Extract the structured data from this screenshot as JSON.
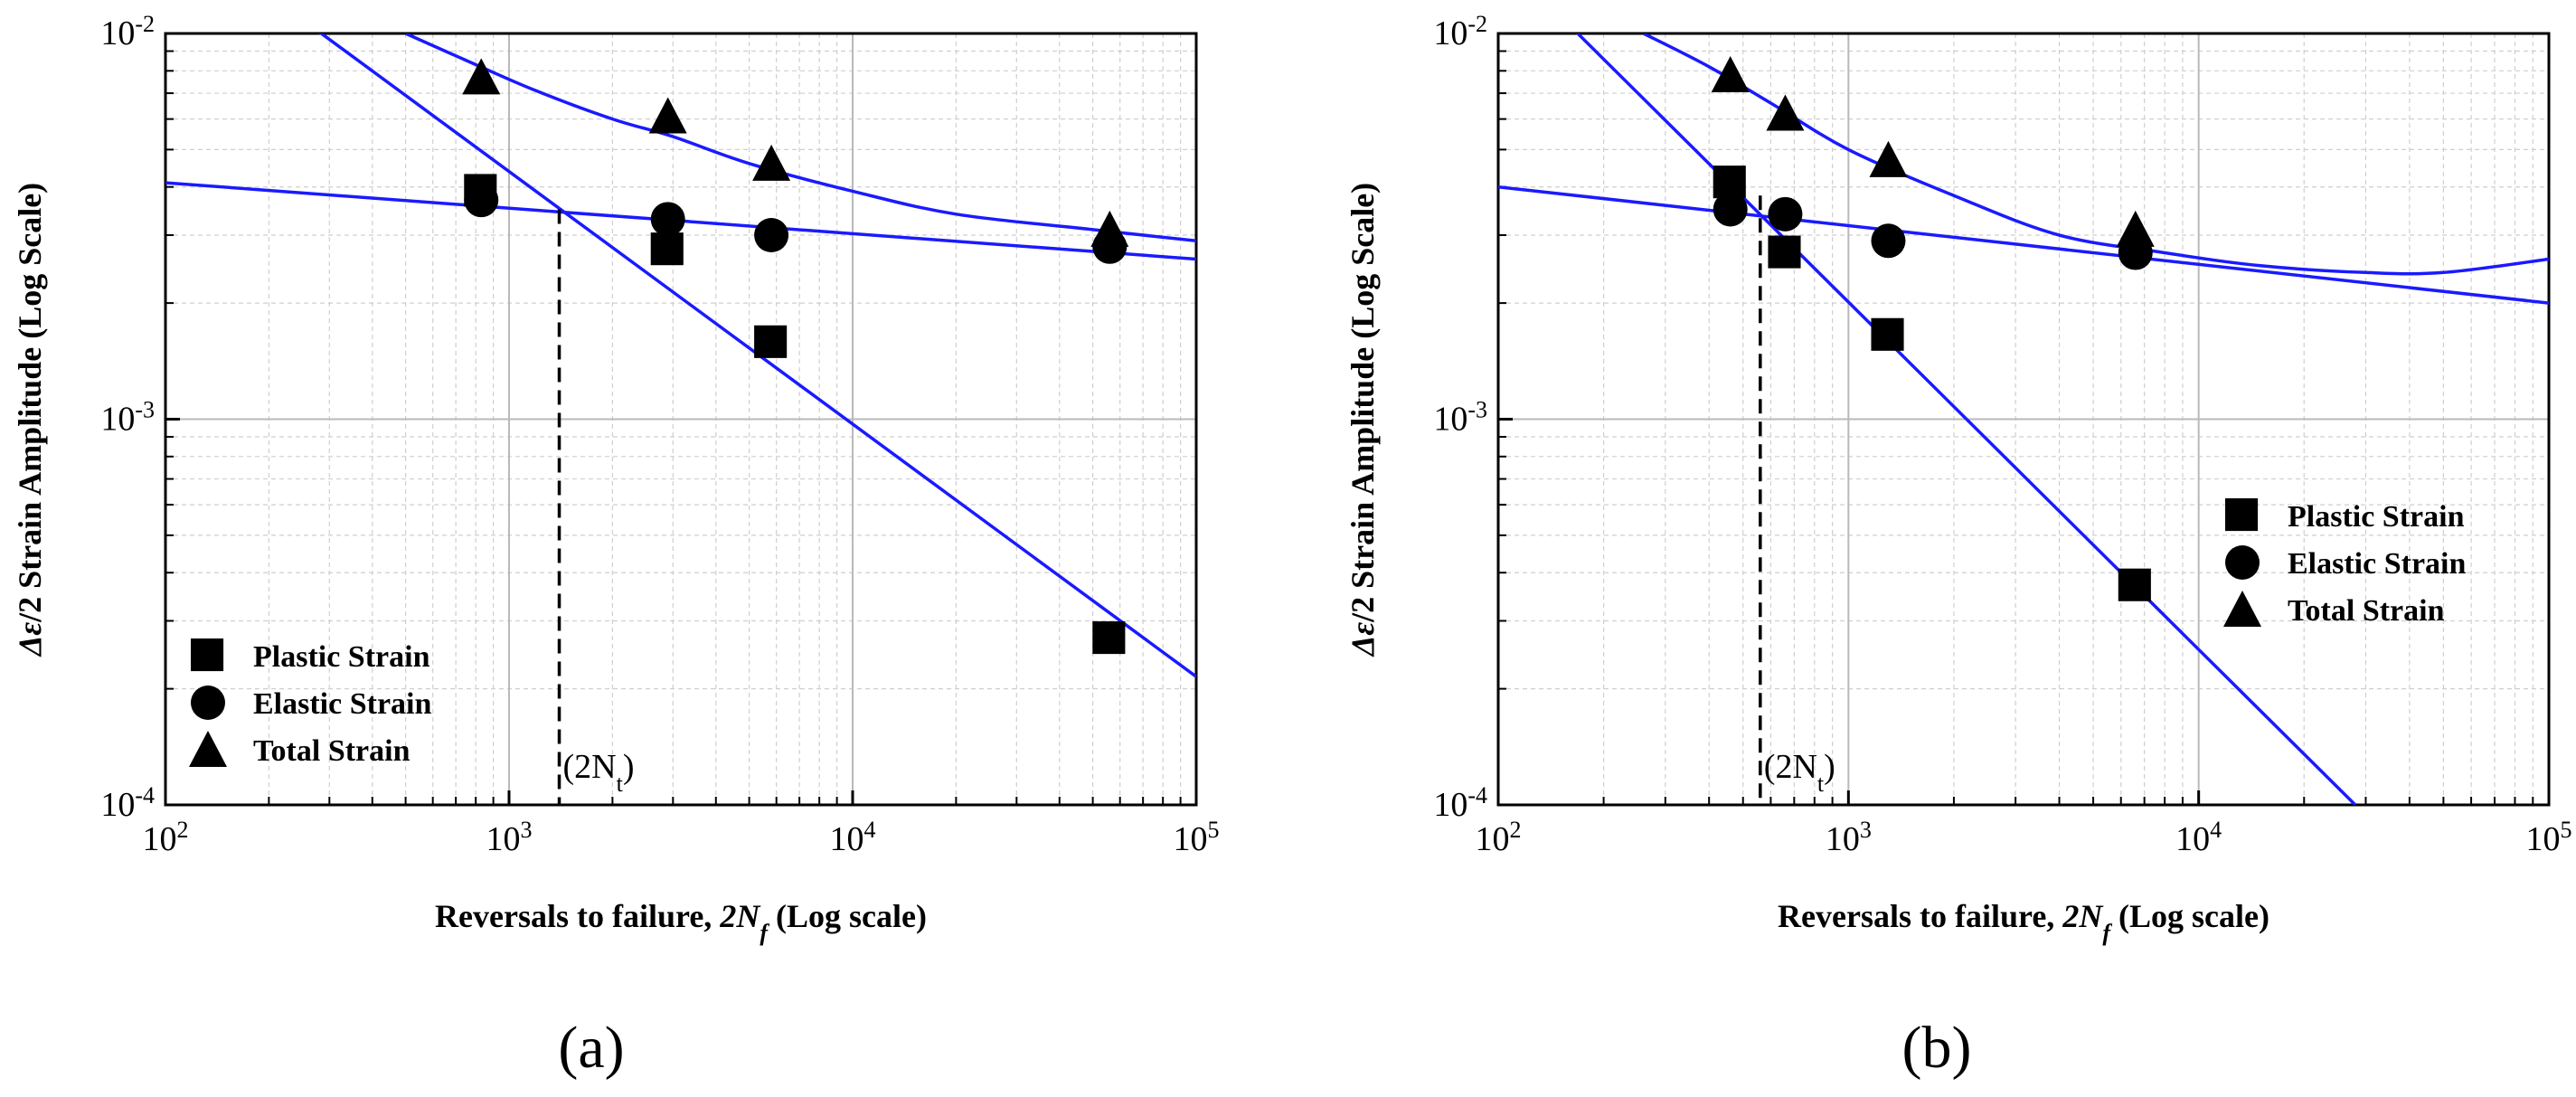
{
  "chart_data": [
    {
      "panel": "(a)",
      "type": "scatter",
      "xscale": "log",
      "yscale": "log",
      "xlim": [
        100,
        100000
      ],
      "ylim": [
        0.0001,
        0.01
      ],
      "x_ticks": [
        {
          "base": "10",
          "exp": "2"
        },
        {
          "base": "10",
          "exp": "3"
        },
        {
          "base": "10",
          "exp": "4"
        },
        {
          "base": "10",
          "exp": "5"
        }
      ],
      "y_ticks": [
        {
          "base": "10",
          "exp": "-4"
        },
        {
          "base": "10",
          "exp": "-3"
        },
        {
          "base": "10",
          "exp": "-2"
        }
      ],
      "xlabel": {
        "prefix": "Reversals to failure, ",
        "math": "2N",
        "sub": "f",
        "suffix": " (Log scale)"
      },
      "ylabel": {
        "math": "Δε",
        "suffix": "/2 Strain Amplitude (Log Scale)"
      },
      "grid": true,
      "legend_position": "bottom-left",
      "series": [
        {
          "name": "Plastic Strain",
          "marker": "square",
          "points": [
            [
              830,
              0.0039
            ],
            [
              2900,
              0.00275
            ],
            [
              5800,
              0.00158
            ],
            [
              56000,
              0.00027
            ]
          ]
        },
        {
          "name": "Elastic Strain",
          "marker": "circle",
          "points": [
            [
              830,
              0.0037
            ],
            [
              2900,
              0.0033
            ],
            [
              5800,
              0.003
            ],
            [
              56000,
              0.0028
            ]
          ]
        },
        {
          "name": "Total Strain",
          "marker": "triangle",
          "points": [
            [
              830,
              0.0077
            ],
            [
              2900,
              0.0061
            ],
            [
              5800,
              0.0046
            ],
            [
              56000,
              0.0031
            ]
          ]
        }
      ],
      "fit_lines": [
        {
          "name": "elastic fit",
          "color": "#1a1aff",
          "points": [
            [
              100,
              0.0041
            ],
            [
              100000,
              0.0026
            ]
          ]
        },
        {
          "name": "plastic fit",
          "color": "#1a1aff",
          "points": [
            [
              280,
              0.0101
            ],
            [
              100000,
              0.000215
            ]
          ]
        },
        {
          "name": "total fit",
          "color": "#1a1aff",
          "points": [
            [
              500,
              0.01
            ],
            [
              800,
              0.0083
            ],
            [
              1200,
              0.0071
            ],
            [
              2000,
              0.006
            ],
            [
              3000,
              0.0054
            ],
            [
              5000,
              0.0046
            ],
            [
              10000,
              0.0039
            ],
            [
              20000,
              0.0034
            ],
            [
              50000,
              0.0031
            ],
            [
              100000,
              0.0029
            ]
          ]
        }
      ],
      "transition_marker": {
        "x": 1400,
        "y_top": 0.0035,
        "label": "(2N",
        "sub": "t",
        "label_close": ")"
      }
    },
    {
      "panel": "(b)",
      "type": "scatter",
      "xscale": "log",
      "yscale": "log",
      "xlim": [
        100,
        100000
      ],
      "ylim": [
        0.0001,
        0.01
      ],
      "x_ticks": [
        {
          "base": "10",
          "exp": "2"
        },
        {
          "base": "10",
          "exp": "3"
        },
        {
          "base": "10",
          "exp": "4"
        },
        {
          "base": "10",
          "exp": "5"
        }
      ],
      "y_ticks": [
        {
          "base": "10",
          "exp": "-4"
        },
        {
          "base": "10",
          "exp": "-3"
        },
        {
          "base": "10",
          "exp": "-2"
        }
      ],
      "xlabel": {
        "prefix": "Reversals to failure, ",
        "math": "2N",
        "sub": "f",
        "suffix": " (Log scale)"
      },
      "ylabel": {
        "math": "Δε",
        "suffix": "/2 Strain Amplitude (Log Scale)"
      },
      "grid": true,
      "legend_position": "right",
      "series": [
        {
          "name": "Plastic Strain",
          "marker": "square",
          "points": [
            [
              460,
              0.0041
            ],
            [
              660,
              0.0027
            ],
            [
              1300,
              0.00165
            ],
            [
              6600,
              0.00037
            ]
          ]
        },
        {
          "name": "Elastic Strain",
          "marker": "circle",
          "points": [
            [
              460,
              0.0035
            ],
            [
              660,
              0.0034
            ],
            [
              1300,
              0.0029
            ],
            [
              6600,
              0.0027
            ]
          ]
        },
        {
          "name": "Total Strain",
          "marker": "triangle",
          "points": [
            [
              460,
              0.0078
            ],
            [
              660,
              0.0062
            ],
            [
              1300,
              0.0047
            ],
            [
              6600,
              0.0031
            ]
          ]
        }
      ],
      "fit_lines": [
        {
          "name": "elastic fit",
          "color": "#1a1aff",
          "points": [
            [
              100,
              0.004
            ],
            [
              100000,
              0.002
            ]
          ]
        },
        {
          "name": "plastic fit",
          "color": "#1a1aff",
          "points": [
            [
              165,
              0.0102
            ],
            [
              28000,
              0.0001
            ]
          ]
        },
        {
          "name": "total fit",
          "color": "#1a1aff",
          "points": [
            [
              260,
              0.01
            ],
            [
              400,
              0.0082
            ],
            [
              600,
              0.0066
            ],
            [
              1000,
              0.005
            ],
            [
              2000,
              0.0038
            ],
            [
              4000,
              0.003
            ],
            [
              8000,
              0.0027
            ],
            [
              15000,
              0.0025
            ],
            [
              30000,
              0.0024
            ],
            [
              50000,
              0.0024
            ],
            [
              100000,
              0.0026
            ]
          ]
        }
      ],
      "transition_marker": {
        "x": 560,
        "y_top": 0.0038,
        "label": "(2N",
        "sub": "t",
        "label_close": ")"
      }
    }
  ],
  "panel_labels": [
    "(a)",
    "(b)"
  ],
  "colors": {
    "fit": "#1a1aff",
    "marker": "#000000",
    "grid_major": "#b9b9b9",
    "grid_minor": "#cfcfcf"
  }
}
